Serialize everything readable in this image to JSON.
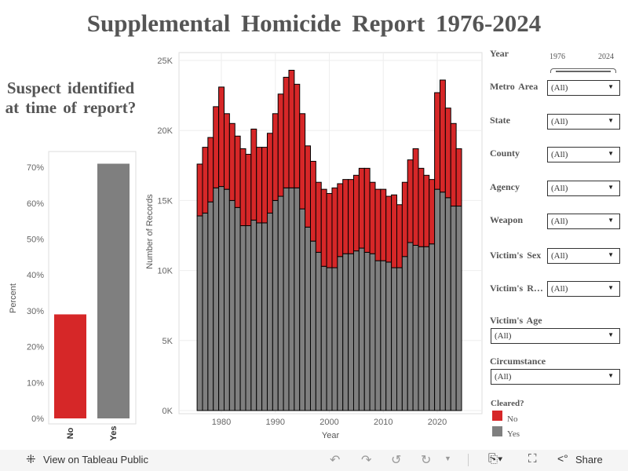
{
  "title": "Supplemental Homicide Report 1976-2024",
  "left_chart_title": "Suspect identified at time of report?",
  "filters": {
    "year_label": "Year",
    "year_min": "1976",
    "year_max": "2024",
    "dropdowns": [
      {
        "label": "Metro Area",
        "value": "(All)"
      },
      {
        "label": "State",
        "value": "(All)"
      },
      {
        "label": "County",
        "value": "(All)"
      },
      {
        "label": "Agency",
        "value": "(All)"
      },
      {
        "label": "Weapon",
        "value": "(All)"
      },
      {
        "label": "Victim's Sex",
        "value": "(All)"
      },
      {
        "label": "Victim's R…",
        "value": "(All)"
      },
      {
        "label": "Victim's Age",
        "value": "(All)"
      },
      {
        "label": "Circumstance",
        "value": "(All)"
      }
    ],
    "legend_title": "Cleared?",
    "legend": [
      {
        "label": "No",
        "color": "#d62728"
      },
      {
        "label": "Yes",
        "color": "#7f7f7f"
      }
    ]
  },
  "footer": {
    "view_label": "View on Tableau Public",
    "share_label": "Share"
  },
  "chart_data": [
    {
      "type": "bar",
      "categories": [
        "No",
        "Yes"
      ],
      "values": [
        29,
        71
      ],
      "ylabel": "Percent",
      "ylim": [
        0,
        75
      ],
      "yticks": [
        "0%",
        "10%",
        "20%",
        "30%",
        "40%",
        "50%",
        "60%",
        "70%"
      ],
      "colors": [
        "#d62728",
        "#7f7f7f"
      ]
    },
    {
      "type": "bar",
      "stacked": true,
      "xlabel": "Year",
      "ylabel": "Number of Records",
      "ylim": [
        0,
        25000
      ],
      "yticks": [
        "0K",
        "5K",
        "10K",
        "15K",
        "20K",
        "25K"
      ],
      "xticks": [
        "1980",
        "1990",
        "2000",
        "2010",
        "2020"
      ],
      "x": [
        1976,
        1977,
        1978,
        1979,
        1980,
        1981,
        1982,
        1983,
        1984,
        1985,
        1986,
        1987,
        1988,
        1989,
        1990,
        1991,
        1992,
        1993,
        1994,
        1995,
        1996,
        1997,
        1998,
        1999,
        2000,
        2001,
        2002,
        2003,
        2004,
        2005,
        2006,
        2007,
        2008,
        2009,
        2010,
        2011,
        2012,
        2013,
        2014,
        2015,
        2016,
        2017,
        2018,
        2019,
        2020,
        2021,
        2022,
        2023,
        2024
      ],
      "series": [
        {
          "name": "Yes",
          "color": "#7f7f7f",
          "values": [
            13900,
            14100,
            14900,
            15900,
            16000,
            15800,
            15000,
            14500,
            13200,
            13200,
            13600,
            13400,
            13400,
            14100,
            15000,
            15300,
            15900,
            15900,
            15900,
            14400,
            13100,
            12100,
            11300,
            10300,
            10200,
            10200,
            11000,
            11200,
            11200,
            11400,
            11600,
            11300,
            11200,
            10700,
            10700,
            10600,
            10200,
            10200,
            11000,
            12000,
            11800,
            11700,
            11700,
            11900,
            15800,
            15600,
            15200,
            14600,
            14600
          ]
        },
        {
          "name": "No",
          "color": "#d62728",
          "values": [
            3700,
            4700,
            4600,
            5800,
            7100,
            5400,
            5500,
            5100,
            5500,
            5100,
            6500,
            5400,
            5400,
            5700,
            6200,
            7300,
            7900,
            8400,
            7400,
            6800,
            5800,
            5700,
            5000,
            5500,
            5300,
            5700,
            5200,
            5300,
            5300,
            5400,
            5700,
            6000,
            5100,
            5100,
            5100,
            4700,
            5200,
            4500,
            5300,
            5900,
            6900,
            5600,
            5100,
            4600,
            6900,
            8000,
            6400,
            5900,
            4100
          ]
        }
      ]
    }
  ]
}
